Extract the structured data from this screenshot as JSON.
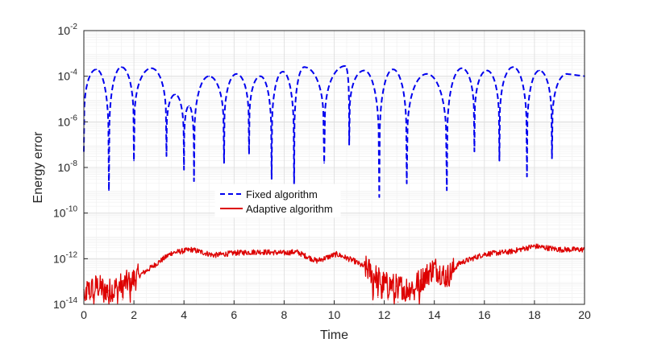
{
  "chart_data": {
    "type": "line",
    "xlabel": "Time",
    "ylabel": "Energy error",
    "xlim": [
      0,
      20
    ],
    "ylim_log10": [
      -14,
      -2
    ],
    "yscale": "log",
    "grid": true,
    "legend_position": "center",
    "x_ticks": [
      0,
      2,
      4,
      6,
      8,
      10,
      12,
      14,
      16,
      18,
      20
    ],
    "x_tick_labels": [
      "0",
      "2",
      "4",
      "6",
      "8",
      "10",
      "12",
      "14",
      "16",
      "18",
      "20"
    ],
    "y_ticks_log10": [
      -14,
      -12,
      -10,
      -8,
      -6,
      -4,
      -2
    ],
    "y_tick_labels": [
      {
        "base": "10",
        "exp": "-14"
      },
      {
        "base": "10",
        "exp": "-12"
      },
      {
        "base": "10",
        "exp": "-10"
      },
      {
        "base": "10",
        "exp": "-8"
      },
      {
        "base": "10",
        "exp": "-6"
      },
      {
        "base": "10",
        "exp": "-4"
      },
      {
        "base": "10",
        "exp": "-2"
      }
    ],
    "series": [
      {
        "name": "Fixed algorithm",
        "color": "#0000ee",
        "style": "dashed",
        "dips": [
          {
            "t": 0.0,
            "log10": -7.3
          },
          {
            "t": 1.0,
            "log10": -9.0
          },
          {
            "t": 2.0,
            "log10": -7.7
          },
          {
            "t": 3.3,
            "log10": -7.5
          },
          {
            "t": 4.0,
            "log10": -8.1
          },
          {
            "t": 4.4,
            "log10": -8.6
          },
          {
            "t": 5.6,
            "log10": -7.8
          },
          {
            "t": 6.6,
            "log10": -7.4
          },
          {
            "t": 7.5,
            "log10": -8.5
          },
          {
            "t": 8.4,
            "log10": -8.8
          },
          {
            "t": 9.6,
            "log10": -7.8
          },
          {
            "t": 10.6,
            "log10": -7.0
          },
          {
            "t": 11.8,
            "log10": -9.3
          },
          {
            "t": 12.9,
            "log10": -8.7
          },
          {
            "t": 14.5,
            "log10": -9.0
          },
          {
            "t": 15.6,
            "log10": -7.3
          },
          {
            "t": 16.6,
            "log10": -7.7
          },
          {
            "t": 17.7,
            "log10": -8.4
          },
          {
            "t": 18.7,
            "log10": -7.6
          }
        ],
        "peaks": [
          {
            "t": 0.5,
            "log10": -3.7
          },
          {
            "t": 1.5,
            "log10": -3.6
          },
          {
            "t": 2.7,
            "log10": -3.65
          },
          {
            "t": 3.65,
            "log10": -4.8
          },
          {
            "t": 4.2,
            "log10": -5.3
          },
          {
            "t": 5.0,
            "log10": -4.0
          },
          {
            "t": 6.1,
            "log10": -3.9
          },
          {
            "t": 7.05,
            "log10": -4.0
          },
          {
            "t": 7.95,
            "log10": -3.8
          },
          {
            "t": 8.8,
            "log10": -3.6
          },
          {
            "t": 10.45,
            "log10": -3.55
          },
          {
            "t": 11.2,
            "log10": -3.75
          },
          {
            "t": 12.35,
            "log10": -3.7
          },
          {
            "t": 13.7,
            "log10": -3.9
          },
          {
            "t": 15.1,
            "log10": -3.65
          },
          {
            "t": 16.1,
            "log10": -3.75
          },
          {
            "t": 17.15,
            "log10": -3.6
          },
          {
            "t": 18.2,
            "log10": -3.75
          },
          {
            "t": 19.3,
            "log10": -3.9
          },
          {
            "t": 20.0,
            "log10": -4.0
          }
        ]
      },
      {
        "name": "Adaptive algorithm",
        "color": "#dd0000",
        "style": "solid",
        "envelope": [
          {
            "t": 0.0,
            "log10": -13.5
          },
          {
            "t": 0.5,
            "log10": -13.2
          },
          {
            "t": 1.0,
            "log10": -13.4
          },
          {
            "t": 1.6,
            "log10": -13.1
          },
          {
            "t": 2.0,
            "log10": -12.9
          },
          {
            "t": 2.8,
            "log10": -12.3
          },
          {
            "t": 3.5,
            "log10": -11.75
          },
          {
            "t": 4.3,
            "log10": -11.6
          },
          {
            "t": 5.2,
            "log10": -11.85
          },
          {
            "t": 6.0,
            "log10": -11.75
          },
          {
            "t": 7.0,
            "log10": -11.7
          },
          {
            "t": 8.0,
            "log10": -11.75
          },
          {
            "t": 8.5,
            "log10": -11.7
          },
          {
            "t": 9.3,
            "log10": -12.1
          },
          {
            "t": 10.1,
            "log10": -11.8
          },
          {
            "t": 10.8,
            "log10": -12.1
          },
          {
            "t": 11.4,
            "log10": -12.5
          },
          {
            "t": 12.0,
            "log10": -13.1
          },
          {
            "t": 12.5,
            "log10": -13.2
          },
          {
            "t": 13.0,
            "log10": -13.3
          },
          {
            "t": 13.5,
            "log10": -12.9
          },
          {
            "t": 14.0,
            "log10": -12.4
          },
          {
            "t": 14.5,
            "log10": -12.8
          },
          {
            "t": 15.0,
            "log10": -12.2
          },
          {
            "t": 16.0,
            "log10": -11.8
          },
          {
            "t": 17.0,
            "log10": -11.7
          },
          {
            "t": 18.0,
            "log10": -11.45
          },
          {
            "t": 19.0,
            "log10": -11.6
          },
          {
            "t": 20.0,
            "log10": -11.6
          }
        ],
        "deep_spikes": [
          {
            "t": 0.05,
            "log10": -14.0
          },
          {
            "t": 0.25,
            "log10": -13.8
          },
          {
            "t": 0.4,
            "log10": -14.0
          },
          {
            "t": 0.8,
            "log10": -13.9
          },
          {
            "t": 1.0,
            "log10": -14.0
          },
          {
            "t": 1.2,
            "log10": -13.7
          },
          {
            "t": 1.35,
            "log10": -14.0
          },
          {
            "t": 1.55,
            "log10": -13.8
          },
          {
            "t": 1.85,
            "log10": -14.0
          },
          {
            "t": 11.55,
            "log10": -14.0
          },
          {
            "t": 11.75,
            "log10": -13.7
          },
          {
            "t": 11.9,
            "log10": -14.0
          },
          {
            "t": 12.15,
            "log10": -13.8
          },
          {
            "t": 12.4,
            "log10": -14.0
          },
          {
            "t": 12.55,
            "log10": -13.9
          },
          {
            "t": 12.85,
            "log10": -14.0
          },
          {
            "t": 13.2,
            "log10": -13.8
          },
          {
            "t": 13.4,
            "log10": -14.0
          },
          {
            "t": 14.4,
            "log10": -13.1
          }
        ]
      }
    ]
  }
}
